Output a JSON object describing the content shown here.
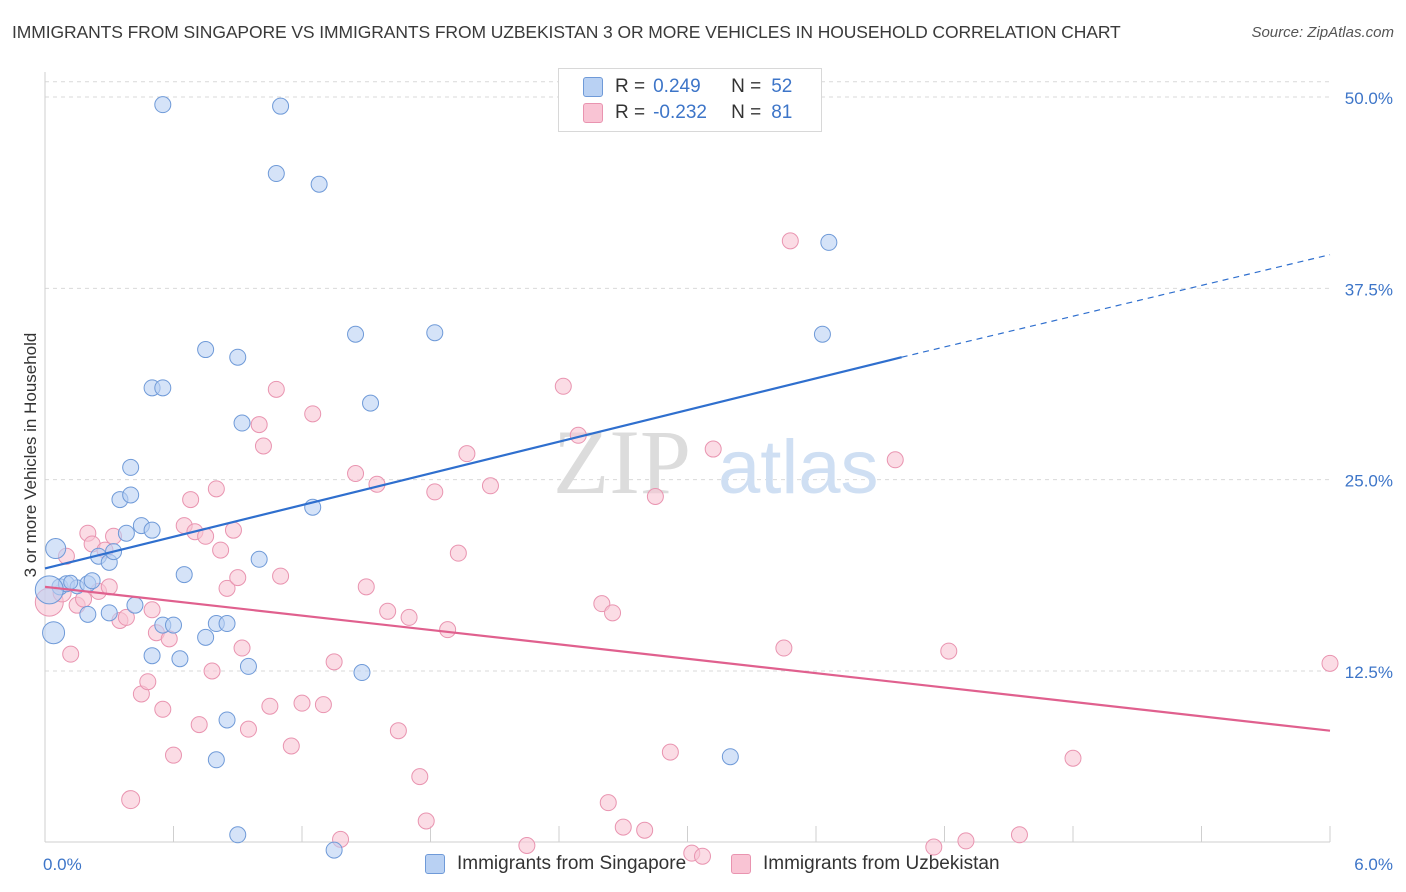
{
  "title": "IMMIGRANTS FROM SINGAPORE VS IMMIGRANTS FROM UZBEKISTAN 3 OR MORE VEHICLES IN HOUSEHOLD CORRELATION CHART",
  "source": "Source: ZipAtlas.com",
  "watermark": {
    "zip": "ZIP",
    "atlas": "atlas"
  },
  "legend": {
    "rows": [
      {
        "r_label": "R =",
        "r_value": "0.249",
        "n_label": "N =",
        "n_value": "52",
        "fill": "#b9d1f3",
        "stroke": "#7ea6e0"
      },
      {
        "r_label": "R =",
        "r_value": "-0.232",
        "n_label": "N =",
        "n_value": "81",
        "fill": "#f9c4d4",
        "stroke": "#ee9ab5"
      }
    ]
  },
  "colors": {
    "singapore_fill": "#b9d1f3",
    "singapore_stroke": "#6f9ad8",
    "singapore_line": "#2f6fce",
    "uzbekistan_fill": "#f9c4d4",
    "uzbekistan_stroke": "#e994b0",
    "uzbekistan_line": "#e0608e",
    "tick_label": "#3d75c8",
    "grid": "#d9d9d9"
  },
  "chart_data": {
    "type": "scatter",
    "title": "IMMIGRANTS FROM SINGAPORE VS IMMIGRANTS FROM UZBEKISTAN 3 OR MORE VEHICLES IN HOUSEHOLD CORRELATION CHART",
    "xlabel": "",
    "ylabel": "3 or more Vehicles in Household",
    "xlim": [
      0,
      6
    ],
    "ylim": [
      0,
      51
    ],
    "x_tick_labels": [
      {
        "value": 0,
        "label": "0.0%"
      },
      {
        "value": 6,
        "label": "6.0%"
      }
    ],
    "y_tick_labels": [
      {
        "value": 12.5,
        "label": "12.5%"
      },
      {
        "value": 25,
        "label": "25.0%"
      },
      {
        "value": 37.5,
        "label": "37.5%"
      },
      {
        "value": 50,
        "label": "50.0%"
      }
    ],
    "grid": true,
    "legend_position": "top-center",
    "series": [
      {
        "name": "Immigrants from Singapore",
        "r": 0.249,
        "n": 52,
        "trend": {
          "x1": 0,
          "y1": 19.2,
          "x2": 4.0,
          "y2": 33.0,
          "dash_to_x": 6.0,
          "dash_to_y": 39.7
        },
        "points": [
          [
            0.05,
            20.5,
            10
          ],
          [
            0.07,
            18.0,
            8
          ],
          [
            0.1,
            18.2,
            8
          ],
          [
            0.15,
            18.0,
            7
          ],
          [
            0.2,
            18.2,
            8
          ],
          [
            0.25,
            20.0,
            8
          ],
          [
            0.3,
            19.6,
            8
          ],
          [
            0.04,
            15.0,
            11
          ],
          [
            0.02,
            17.8,
            14
          ],
          [
            0.2,
            16.2,
            8
          ],
          [
            0.3,
            16.3,
            8
          ],
          [
            0.35,
            23.7,
            8
          ],
          [
            0.38,
            21.5,
            8
          ],
          [
            0.4,
            24.0,
            8
          ],
          [
            0.4,
            25.8,
            8
          ],
          [
            0.45,
            22.0,
            8
          ],
          [
            0.5,
            21.7,
            8
          ],
          [
            0.5,
            31.0,
            8
          ],
          [
            0.55,
            31.0,
            8
          ],
          [
            0.5,
            13.5,
            8
          ],
          [
            0.55,
            15.5,
            8
          ],
          [
            0.6,
            15.5,
            8
          ],
          [
            0.63,
            13.3,
            8
          ],
          [
            0.65,
            18.8,
            8
          ],
          [
            0.55,
            49.5,
            8
          ],
          [
            1.1,
            49.4,
            8
          ],
          [
            1.08,
            45.0,
            8
          ],
          [
            1.28,
            44.3,
            8
          ],
          [
            0.75,
            33.5,
            8
          ],
          [
            0.9,
            33.0,
            8
          ],
          [
            0.92,
            28.7,
            8
          ],
          [
            0.8,
            15.6,
            8
          ],
          [
            0.75,
            14.7,
            8
          ],
          [
            0.85,
            9.3,
            8
          ],
          [
            0.8,
            6.7,
            8
          ],
          [
            0.85,
            15.6,
            8
          ],
          [
            0.95,
            12.8,
            8
          ],
          [
            1.0,
            19.8,
            8
          ],
          [
            1.25,
            23.2,
            8
          ],
          [
            1.45,
            34.5,
            8
          ],
          [
            1.52,
            30.0,
            8
          ],
          [
            1.48,
            12.4,
            8
          ],
          [
            1.82,
            34.6,
            8
          ],
          [
            0.9,
            1.8,
            8
          ],
          [
            1.35,
            0.8,
            8
          ],
          [
            3.63,
            34.5,
            8
          ],
          [
            3.66,
            40.5,
            8
          ],
          [
            3.2,
            6.9,
            8
          ],
          [
            0.22,
            18.4,
            8
          ],
          [
            0.32,
            20.3,
            8
          ],
          [
            0.42,
            16.8,
            8
          ],
          [
            0.12,
            18.3,
            7
          ]
        ]
      },
      {
        "name": "Immigrants from Uzbekistan",
        "r": -0.232,
        "n": 81,
        "trend": {
          "x1": 0,
          "y1": 18.0,
          "x2": 6.0,
          "y2": 8.6
        },
        "points": [
          [
            0.02,
            17.0,
            14
          ],
          [
            0.08,
            17.6,
            9
          ],
          [
            0.1,
            20.0,
            8
          ],
          [
            0.12,
            13.6,
            8
          ],
          [
            0.15,
            16.8,
            8
          ],
          [
            0.2,
            21.5,
            8
          ],
          [
            0.22,
            20.8,
            8
          ],
          [
            0.25,
            17.7,
            8
          ],
          [
            0.28,
            20.4,
            8
          ],
          [
            0.3,
            18.0,
            8
          ],
          [
            0.32,
            21.3,
            8
          ],
          [
            0.35,
            15.8,
            8
          ],
          [
            0.4,
            4.1,
            9
          ],
          [
            0.45,
            11.0,
            8
          ],
          [
            0.48,
            11.8,
            8
          ],
          [
            0.5,
            16.5,
            8
          ],
          [
            0.52,
            15.0,
            8
          ],
          [
            0.55,
            10.0,
            8
          ],
          [
            0.58,
            14.6,
            8
          ],
          [
            0.6,
            7.0,
            8
          ],
          [
            0.65,
            22.0,
            8
          ],
          [
            0.68,
            23.7,
            8
          ],
          [
            0.7,
            21.6,
            8
          ],
          [
            0.72,
            9.0,
            8
          ],
          [
            0.75,
            21.3,
            8
          ],
          [
            0.78,
            12.5,
            8
          ],
          [
            0.8,
            24.4,
            8
          ],
          [
            0.82,
            20.4,
            8
          ],
          [
            0.85,
            17.9,
            8
          ],
          [
            0.88,
            21.7,
            8
          ],
          [
            0.9,
            18.6,
            8
          ],
          [
            0.92,
            14.0,
            8
          ],
          [
            0.95,
            8.7,
            8
          ],
          [
            1.0,
            28.6,
            8
          ],
          [
            1.02,
            27.2,
            8
          ],
          [
            1.05,
            10.2,
            8
          ],
          [
            1.08,
            30.9,
            8
          ],
          [
            1.1,
            18.7,
            8
          ],
          [
            1.15,
            7.6,
            8
          ],
          [
            1.2,
            10.4,
            8
          ],
          [
            1.25,
            29.3,
            8
          ],
          [
            1.3,
            10.3,
            8
          ],
          [
            1.35,
            13.1,
            8
          ],
          [
            1.38,
            1.5,
            8
          ],
          [
            1.45,
            25.4,
            8
          ],
          [
            1.5,
            18.0,
            8
          ],
          [
            1.55,
            24.7,
            8
          ],
          [
            1.6,
            16.4,
            8
          ],
          [
            1.65,
            8.6,
            8
          ],
          [
            1.7,
            16.0,
            8
          ],
          [
            1.75,
            5.6,
            8
          ],
          [
            1.78,
            2.7,
            8
          ],
          [
            1.82,
            24.2,
            8
          ],
          [
            1.88,
            15.2,
            8
          ],
          [
            1.93,
            20.2,
            8
          ],
          [
            1.97,
            26.7,
            8
          ],
          [
            2.08,
            24.6,
            8
          ],
          [
            2.25,
            1.1,
            8
          ],
          [
            2.42,
            31.1,
            8
          ],
          [
            2.49,
            27.9,
            8
          ],
          [
            2.6,
            16.9,
            8
          ],
          [
            2.63,
            3.9,
            8
          ],
          [
            2.65,
            16.3,
            8
          ],
          [
            2.7,
            2.3,
            8
          ],
          [
            2.8,
            2.1,
            8
          ],
          [
            2.85,
            23.9,
            8
          ],
          [
            2.92,
            7.2,
            8
          ],
          [
            3.02,
            0.6,
            8
          ],
          [
            3.12,
            27.0,
            8
          ],
          [
            3.07,
            0.4,
            8
          ],
          [
            3.45,
            14.0,
            8
          ],
          [
            3.48,
            40.6,
            8
          ],
          [
            3.97,
            26.3,
            8
          ],
          [
            4.15,
            1.0,
            8
          ],
          [
            4.22,
            13.8,
            8
          ],
          [
            4.3,
            1.4,
            8
          ],
          [
            4.55,
            1.8,
            8
          ],
          [
            4.8,
            6.8,
            8
          ],
          [
            6.0,
            13.0,
            8
          ],
          [
            0.18,
            17.2,
            8
          ],
          [
            0.38,
            16.0,
            8
          ]
        ]
      }
    ]
  }
}
